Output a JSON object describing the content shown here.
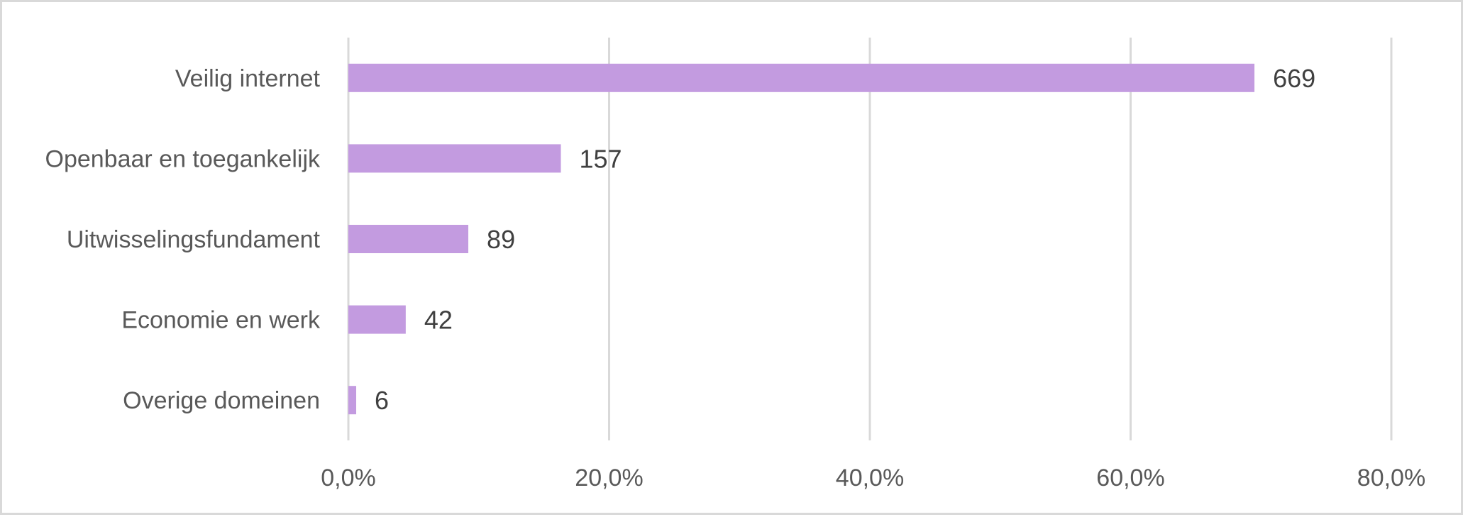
{
  "chart_data": {
    "type": "bar",
    "orientation": "horizontal",
    "categories": [
      "Veilig internet",
      "Openbaar en toegankelijk",
      "Uitwisselingsfundament",
      "Economie en werk",
      "Overige domeinen"
    ],
    "values": [
      69.5,
      16.3,
      9.2,
      4.4,
      0.6
    ],
    "data_labels": [
      "669",
      "157",
      "89",
      "42",
      "6"
    ],
    "x_ticks": [
      "0,0%",
      "20,0%",
      "40,0%",
      "60,0%",
      "80,0%"
    ],
    "xlim": [
      0,
      80
    ],
    "grid": true,
    "bar_color": "#c39be0",
    "title": "",
    "xlabel": "",
    "ylabel": ""
  }
}
